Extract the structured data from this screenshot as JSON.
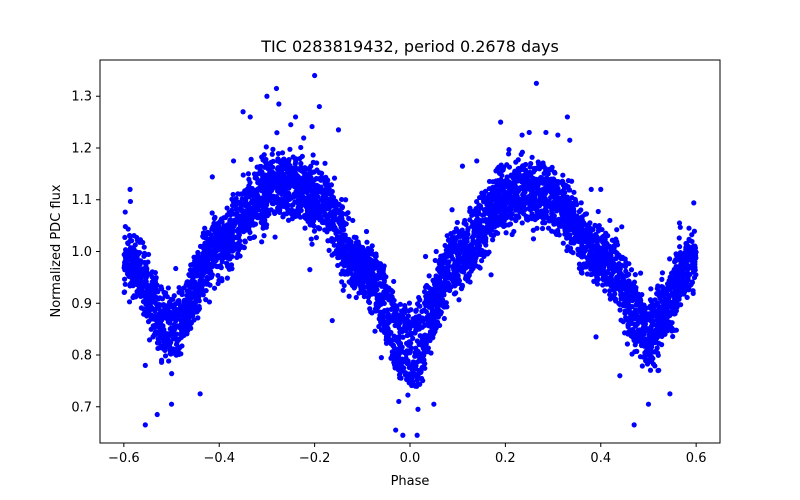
{
  "chart_data": {
    "type": "scatter",
    "title": "TIC 0283819432, period 0.2678 days",
    "xlabel": "Phase",
    "ylabel": "Normalized PDC flux",
    "xlim": [
      -0.65,
      0.65
    ],
    "ylim": [
      0.63,
      1.37
    ],
    "x_ticks": [
      -0.6,
      -0.4,
      -0.2,
      0.0,
      0.2,
      0.4,
      0.6
    ],
    "x_tick_labels": [
      "−0.6",
      "−0.4",
      "−0.2",
      "0.0",
      "0.2",
      "0.4",
      "0.6"
    ],
    "y_ticks": [
      0.7,
      0.8,
      0.9,
      1.0,
      1.1,
      1.2,
      1.3
    ],
    "y_tick_labels": [
      "0.7",
      "0.8",
      "0.9",
      "1.0",
      "1.1",
      "1.2",
      "1.3"
    ],
    "grid": false,
    "legend": "none",
    "marker_color": "#0000ff",
    "marker": "filled-circle",
    "period_days": 0.2678,
    "phase_range": [
      -0.6,
      0.6
    ],
    "curve_profile": {
      "phase": [
        -0.6,
        -0.5,
        -0.4,
        -0.3,
        -0.25,
        -0.2,
        -0.1,
        0.0,
        0.1,
        0.2,
        0.25,
        0.3,
        0.4,
        0.5,
        0.6
      ],
      "upper_branch_flux": [
        1.0,
        0.88,
        1.03,
        1.14,
        1.15,
        1.13,
        0.99,
        0.85,
        1.01,
        1.13,
        1.14,
        1.12,
        1.01,
        0.88,
        1.0
      ],
      "lower_branch_flux": [
        0.97,
        0.82,
        0.99,
        1.09,
        1.1,
        1.08,
        0.94,
        0.77,
        0.96,
        1.08,
        1.1,
        1.08,
        0.97,
        0.82,
        0.97
      ],
      "scatter_sigma": 0.022
    },
    "outliers": [
      {
        "x": -0.587,
        "y": 1.12
      },
      {
        "x": -0.555,
        "y": 0.665
      },
      {
        "x": -0.555,
        "y": 0.78
      },
      {
        "x": -0.53,
        "y": 0.685
      },
      {
        "x": -0.5,
        "y": 0.705
      },
      {
        "x": -0.44,
        "y": 0.725
      },
      {
        "x": -0.415,
        "y": 0.955
      },
      {
        "x": -0.37,
        "y": 1.175
      },
      {
        "x": -0.35,
        "y": 1.27
      },
      {
        "x": -0.335,
        "y": 1.26
      },
      {
        "x": -0.3,
        "y": 1.3
      },
      {
        "x": -0.28,
        "y": 1.315
      },
      {
        "x": -0.275,
        "y": 1.285
      },
      {
        "x": -0.25,
        "y": 1.245
      },
      {
        "x": -0.24,
        "y": 1.26
      },
      {
        "x": -0.2,
        "y": 1.34
      },
      {
        "x": -0.19,
        "y": 1.28
      },
      {
        "x": -0.15,
        "y": 1.235
      },
      {
        "x": -0.14,
        "y": 0.925
      },
      {
        "x": -0.135,
        "y": 1.1
      },
      {
        "x": -0.12,
        "y": 1.06
      },
      {
        "x": -0.13,
        "y": 1.075
      },
      {
        "x": -0.06,
        "y": 0.795
      },
      {
        "x": -0.03,
        "y": 0.655
      },
      {
        "x": -0.015,
        "y": 0.645
      },
      {
        "x": 0.015,
        "y": 0.645
      },
      {
        "x": 0.05,
        "y": 0.705
      },
      {
        "x": 0.055,
        "y": 1.0
      },
      {
        "x": 0.07,
        "y": 0.96
      },
      {
        "x": 0.11,
        "y": 1.165
      },
      {
        "x": 0.14,
        "y": 1.175
      },
      {
        "x": 0.19,
        "y": 1.25
      },
      {
        "x": 0.235,
        "y": 1.225
      },
      {
        "x": 0.25,
        "y": 1.23
      },
      {
        "x": 0.265,
        "y": 1.325
      },
      {
        "x": 0.285,
        "y": 1.23
      },
      {
        "x": 0.31,
        "y": 1.225
      },
      {
        "x": 0.33,
        "y": 1.26
      },
      {
        "x": 0.335,
        "y": 1.215
      },
      {
        "x": 0.38,
        "y": 1.12
      },
      {
        "x": 0.4,
        "y": 1.12
      },
      {
        "x": 0.39,
        "y": 0.835
      },
      {
        "x": 0.44,
        "y": 0.76
      },
      {
        "x": 0.47,
        "y": 0.665
      },
      {
        "x": 0.5,
        "y": 0.705
      },
      {
        "x": 0.52,
        "y": 0.77
      },
      {
        "x": 0.545,
        "y": 0.725
      },
      {
        "x": 0.565,
        "y": 1.055
      },
      {
        "x": 0.58,
        "y": 1.015
      },
      {
        "x": 0.585,
        "y": 1.045
      },
      {
        "x": -0.21,
        "y": 0.965
      },
      {
        "x": 0.17,
        "y": 0.955
      }
    ]
  }
}
